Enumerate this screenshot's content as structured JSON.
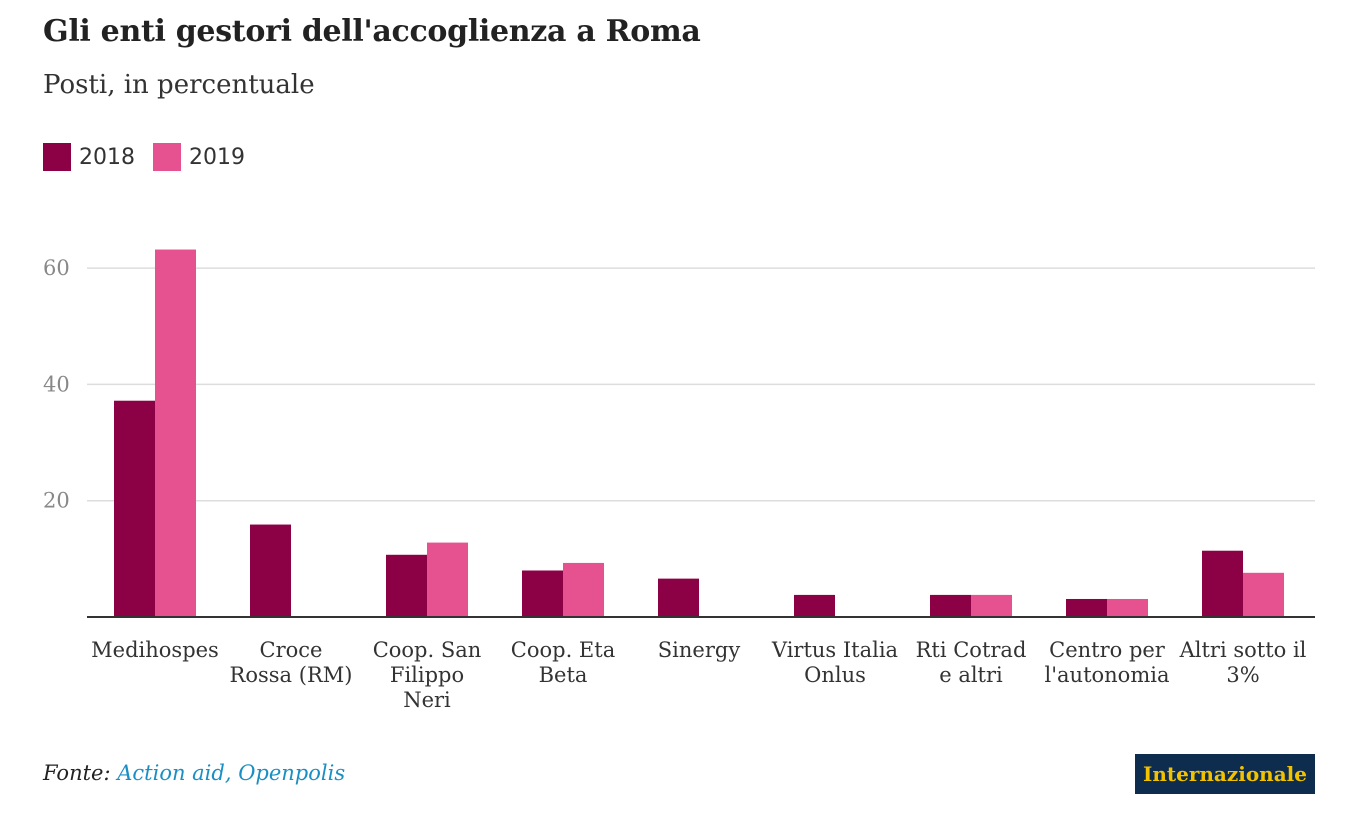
{
  "title": "Gli enti gestori dell'accoglienza a Roma",
  "subtitle": "Posti, in percentuale",
  "source": {
    "prefix": "Fonte:",
    "text": "Action aid, Openpolis"
  },
  "logo": "Internazionale",
  "colors": {
    "s2018": "#8c0046",
    "s2019": "#e5528f",
    "grid": "#dddddd",
    "axis": "#333333",
    "tick": "#888888"
  },
  "chart_data": {
    "type": "bar",
    "title": "Gli enti gestori dell'accoglienza a Roma",
    "subtitle": "Posti, in percentuale",
    "xlabel": "",
    "ylabel": "",
    "ylim": [
      0,
      70
    ],
    "yticks": [
      20,
      40,
      60
    ],
    "grid": true,
    "legend_position": "top-left",
    "categories": [
      [
        "Medihospes"
      ],
      [
        "Croce",
        "Rossa (RM)"
      ],
      [
        "Coop. San",
        "Filippo",
        "Neri"
      ],
      [
        "Coop. Eta",
        "Beta"
      ],
      [
        "Sinergy"
      ],
      [
        "Virtus Italia",
        "Onlus"
      ],
      [
        "Rti Cotrad",
        "e altri"
      ],
      [
        "Centro per",
        "l'autonomia"
      ],
      [
        "Altri sotto il",
        "3%"
      ]
    ],
    "series": [
      {
        "name": "2018",
        "values": [
          37.2,
          15.9,
          10.7,
          8.0,
          6.6,
          3.8,
          3.8,
          3.1,
          11.4
        ]
      },
      {
        "name": "2019",
        "values": [
          63.2,
          null,
          12.8,
          9.3,
          null,
          null,
          3.8,
          3.1,
          7.6
        ]
      }
    ]
  }
}
